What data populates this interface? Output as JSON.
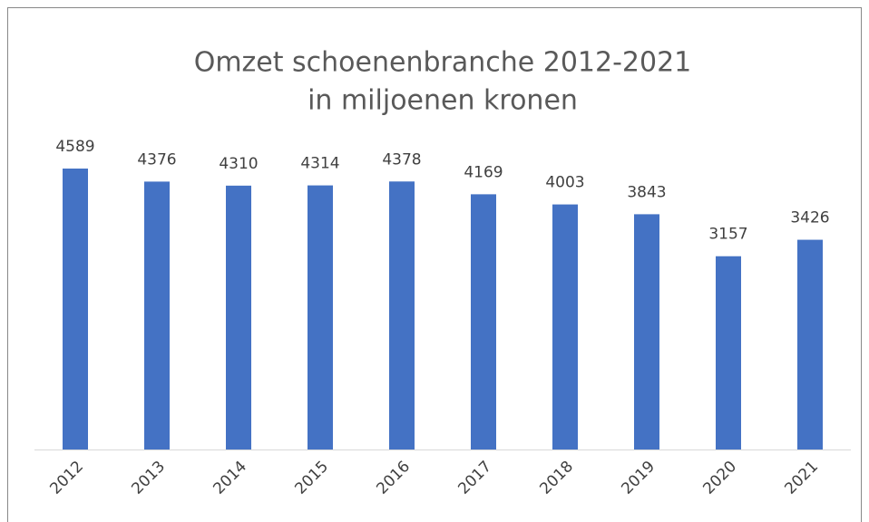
{
  "chart_data": {
    "type": "bar",
    "title": "Omzet schoenenbranche 2012-2021",
    "subtitle": "in miljoenen kronen",
    "categories": [
      "2012",
      "2013",
      "2014",
      "2015",
      "2016",
      "2017",
      "2018",
      "2019",
      "2020",
      "2021"
    ],
    "values": [
      4589,
      4376,
      4310,
      4314,
      4378,
      4169,
      4003,
      3843,
      3157,
      3426
    ],
    "color": "#4472c4",
    "grid": false
  }
}
